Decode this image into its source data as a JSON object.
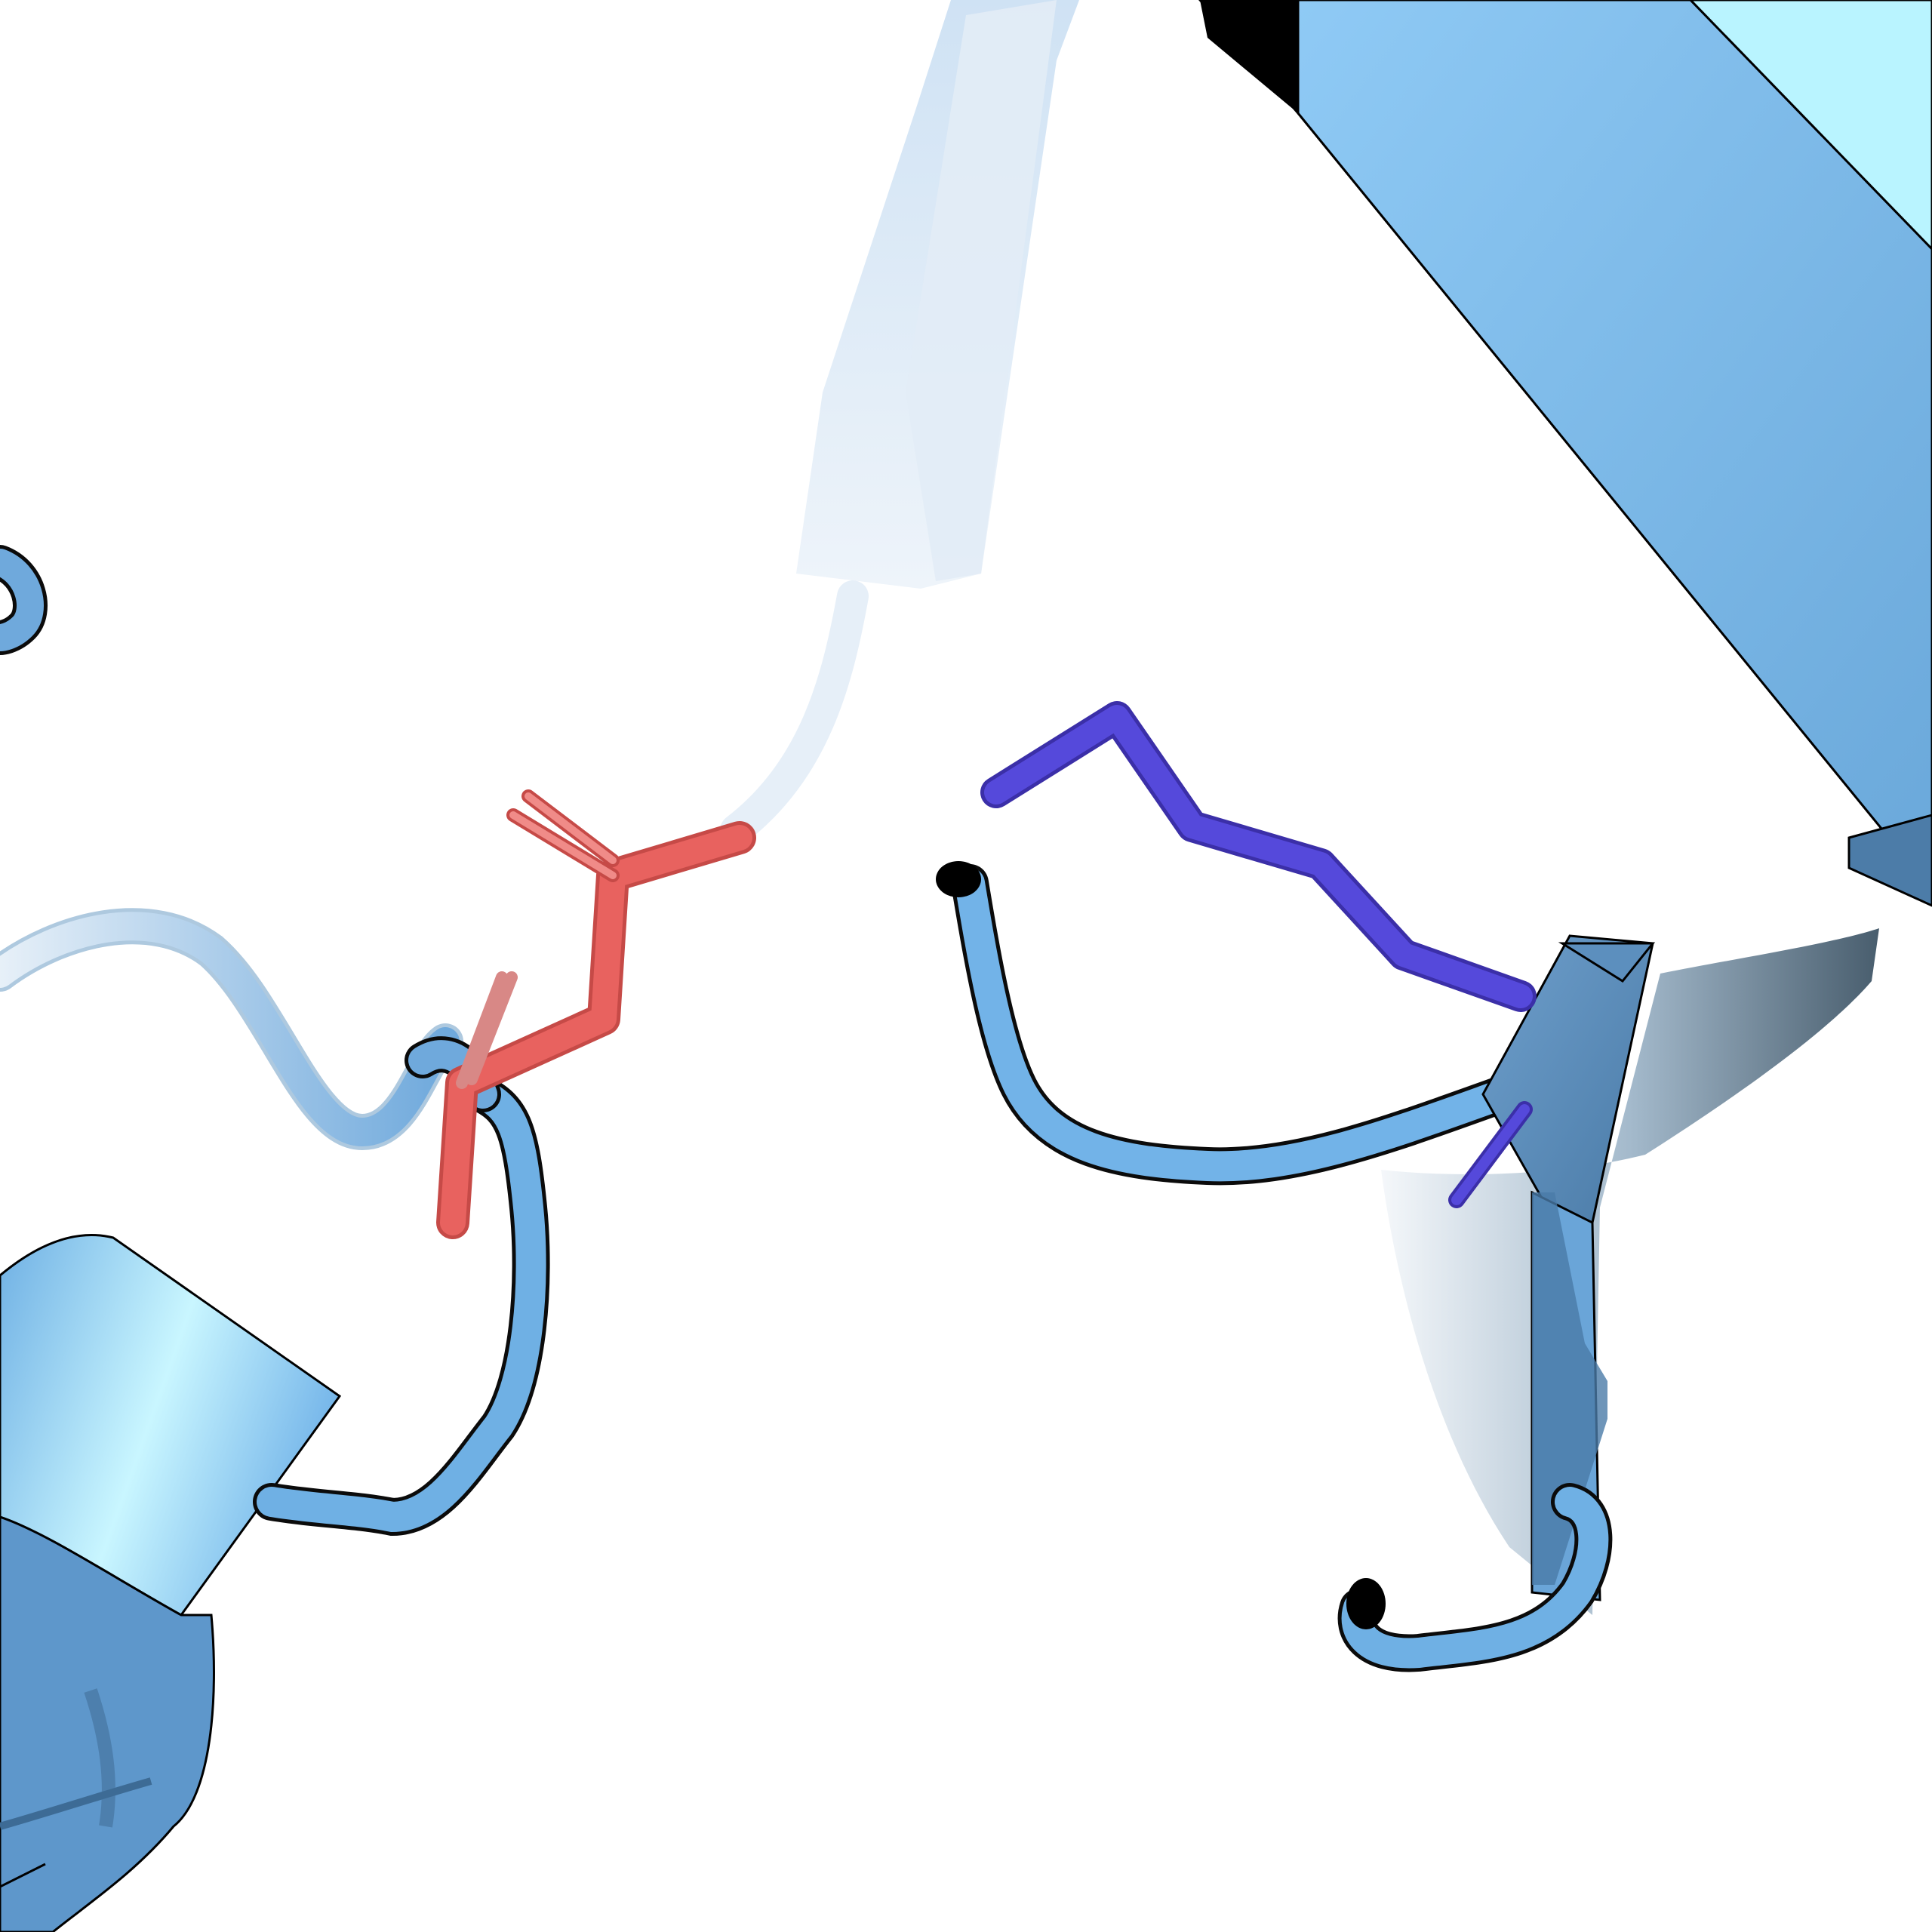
{
  "scene": {
    "kind": "protein cartoon rendering",
    "background_color": "#ffffff",
    "colors": {
      "ribbon": "#7fbdf0",
      "ribbon_dark": "#4f87b8",
      "ribbon_faded": "#dbe9f6",
      "acidic_residue": "#e8625f",
      "basic_residue": "#5549db",
      "outline": "#0b0b0b"
    },
    "elements": [
      {
        "name": "beta-strand-top-right",
        "color": "ribbon"
      },
      {
        "name": "beta-strand-top-center-faded",
        "color": "ribbon_faded"
      },
      {
        "name": "helix-bottom-left",
        "color": "ribbon"
      },
      {
        "name": "beta-sheet-right",
        "color": "ribbon_dark"
      },
      {
        "name": "loop-coil-center",
        "color": "ribbon"
      },
      {
        "name": "acidic-residue-sticks",
        "color": "acidic_residue"
      },
      {
        "name": "basic-residue-sticks",
        "color": "basic_residue"
      }
    ]
  }
}
